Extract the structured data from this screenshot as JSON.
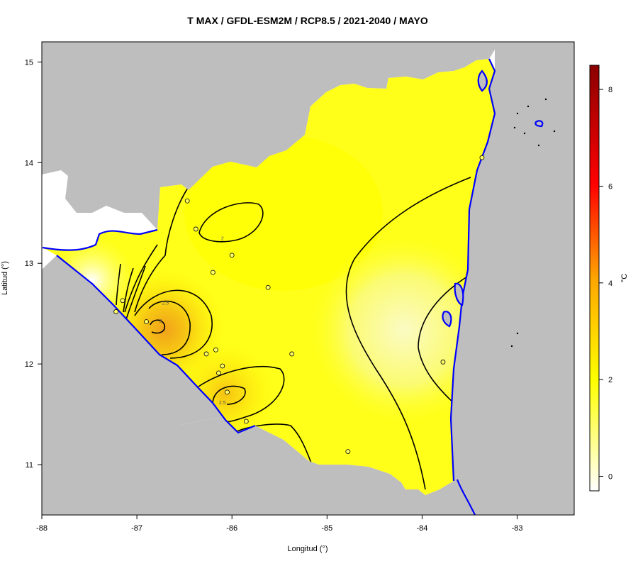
{
  "title": "T MAX / GFDL-ESM2M / RCP8.5 / 2021-2040 / MAYO",
  "x_axis": {
    "label": "Longitud (°)",
    "ticks": [
      -88,
      -87,
      -86,
      -85,
      -84,
      -83
    ],
    "range": [
      -88,
      -82.4
    ]
  },
  "y_axis": {
    "label": "Latitud (°)",
    "ticks": [
      11,
      12,
      13,
      14,
      15
    ],
    "range": [
      10.5,
      15.2
    ]
  },
  "colorbar": {
    "label": "°C",
    "ticks": [
      0,
      2,
      4,
      6,
      8
    ],
    "range": [
      -0.3,
      8.5
    ],
    "colors": [
      "#ffffff",
      "#ffff00",
      "#ffa500",
      "#ff0000",
      "#8b0000"
    ]
  },
  "contour_labels": [
    {
      "text": "2",
      "lon": -86.1,
      "lat": 13.23
    },
    {
      "text": "2.5",
      "lon": -86.7,
      "lat": 12.59
    },
    {
      "text": "3",
      "lon": -86.75,
      "lat": 12.41
    },
    {
      "text": "2.5",
      "lon": -86.1,
      "lat": 11.6
    }
  ],
  "stations": [
    {
      "lon": -86.47,
      "lat": 13.62
    },
    {
      "lon": -86.38,
      "lat": 13.34
    },
    {
      "lon": -86.0,
      "lat": 13.08
    },
    {
      "lon": -86.2,
      "lat": 12.91
    },
    {
      "lon": -85.62,
      "lat": 12.76
    },
    {
      "lon": -87.15,
      "lat": 12.63
    },
    {
      "lon": -87.22,
      "lat": 12.52
    },
    {
      "lon": -86.9,
      "lat": 12.42
    },
    {
      "lon": -86.17,
      "lat": 12.14
    },
    {
      "lon": -86.27,
      "lat": 12.1
    },
    {
      "lon": -85.37,
      "lat": 12.1
    },
    {
      "lon": -86.1,
      "lat": 11.98
    },
    {
      "lon": -86.14,
      "lat": 11.91
    },
    {
      "lon": -86.05,
      "lat": 11.72
    },
    {
      "lon": -85.85,
      "lat": 11.43
    },
    {
      "lon": -84.78,
      "lat": 11.13
    },
    {
      "lon": -83.37,
      "lat": 14.05
    },
    {
      "lon": -83.78,
      "lat": 12.02
    }
  ],
  "colors": {
    "land_outside": "#bebebe",
    "coast": "#0000ff",
    "contour": "#000000",
    "station_fill": "#ffff66"
  }
}
